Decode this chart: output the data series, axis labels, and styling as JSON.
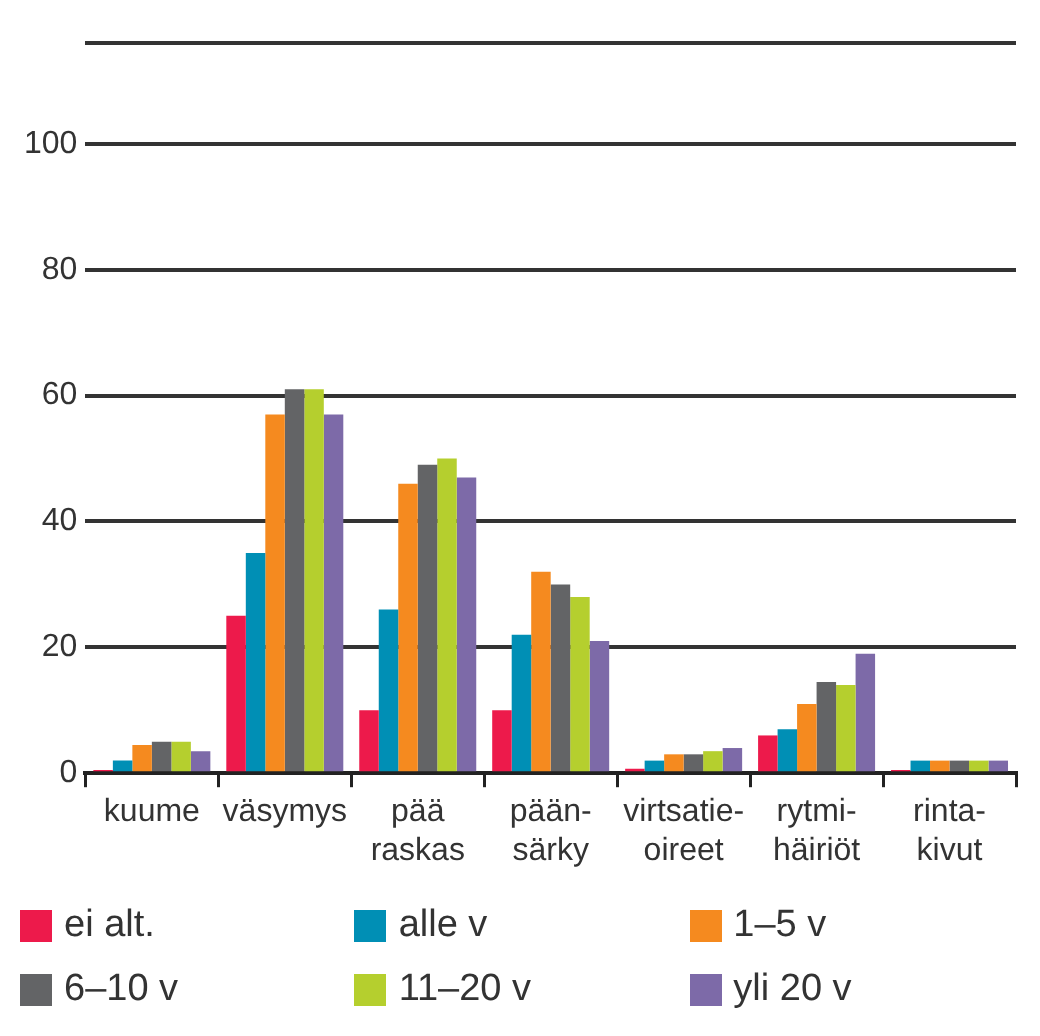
{
  "chart_data": {
    "type": "bar",
    "categories": [
      "kuume",
      "väsymys",
      "pää\nraskas",
      "pään-\nsärky",
      "virtsatie-\noireet",
      "rytmi-\nhäiriöt",
      "rinta-\nkivut"
    ],
    "series": [
      {
        "name": "ei alt.",
        "color": "#ed1a4b",
        "values": [
          0.5,
          25,
          10,
          10,
          0.7,
          6,
          0.5
        ]
      },
      {
        "name": "alle v",
        "color": "#008fb5",
        "values": [
          2,
          35,
          26,
          22,
          2,
          7,
          2
        ]
      },
      {
        "name": "1–5 v",
        "color": "#f58a1f",
        "values": [
          4.5,
          57,
          46,
          32,
          3,
          11,
          2
        ]
      },
      {
        "name": "6–10 v",
        "color": "#636466",
        "values": [
          5,
          61,
          49,
          30,
          3,
          14.5,
          2
        ]
      },
      {
        "name": "11–20 v",
        "color": "#b5cf2e",
        "values": [
          5,
          61,
          50,
          28,
          3.5,
          14,
          2
        ]
      },
      {
        "name": "yli 20 v",
        "color": "#7d6aa8",
        "values": [
          3.5,
          57,
          47,
          21,
          4,
          19,
          2
        ]
      }
    ],
    "ylim": [
      0,
      116
    ],
    "yticks": [
      0,
      20,
      40,
      60,
      80,
      100,
      {
        "value": 116,
        "label": null
      }
    ],
    "grid": "y",
    "legend": "bottom"
  }
}
